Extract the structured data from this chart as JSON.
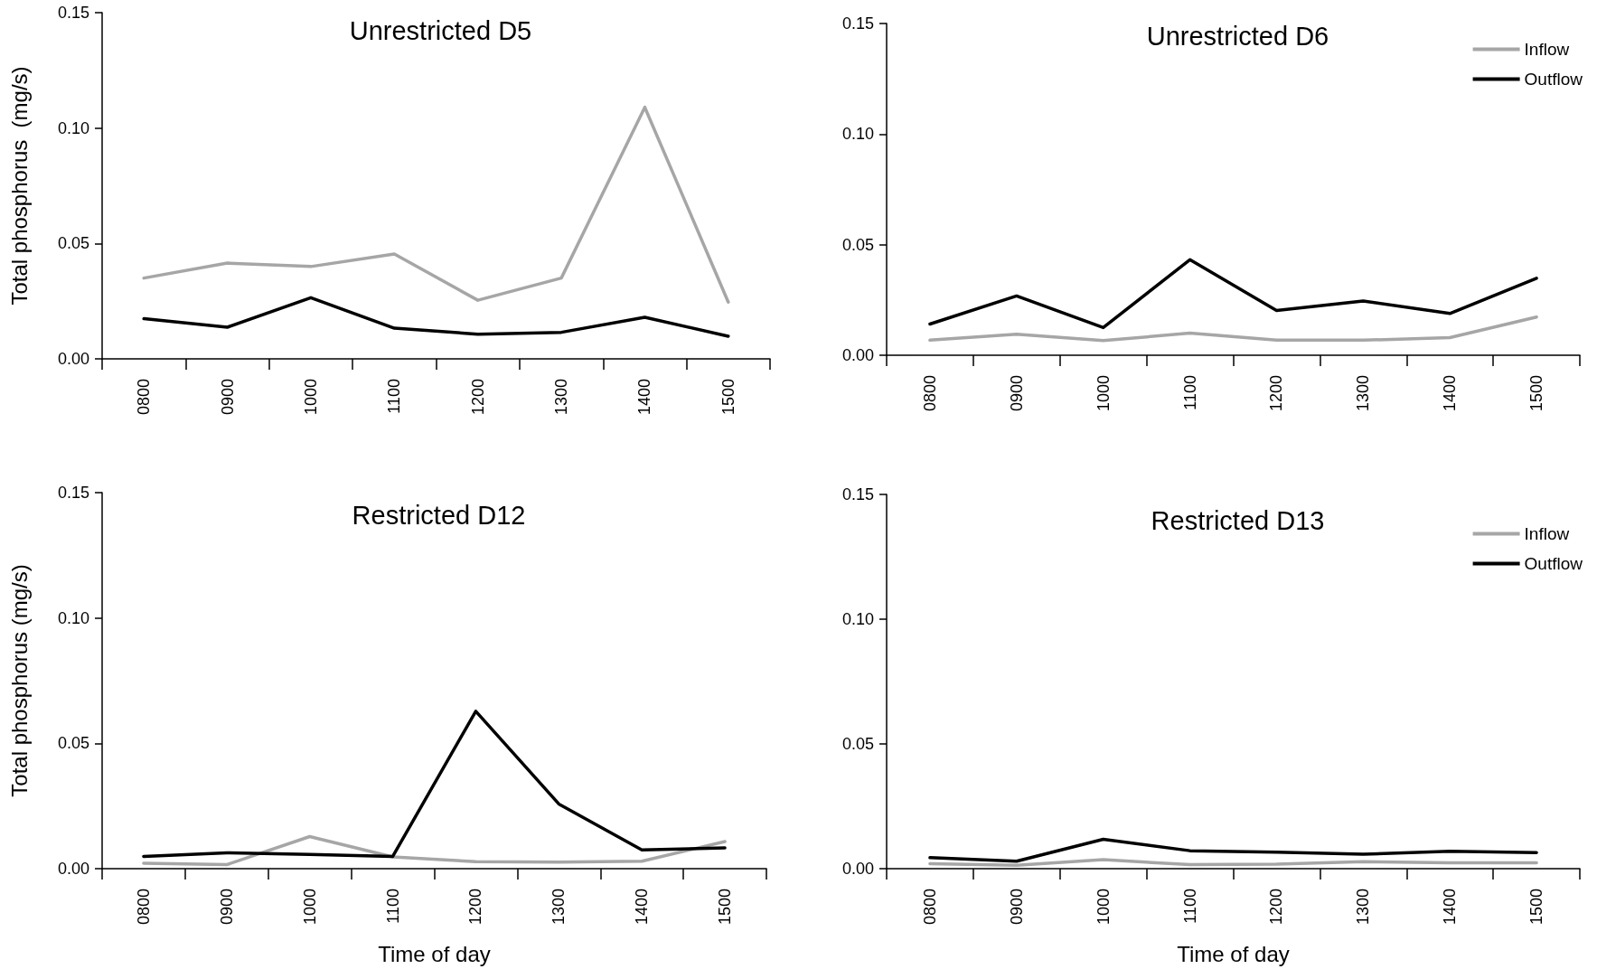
{
  "chart_data": [
    {
      "type": "line",
      "title": "Unrestricted D5",
      "ylabel": "Total phosphorus  (mg/s)",
      "categories": [
        "0800",
        "0900",
        "1000",
        "1100",
        "1200",
        "1300",
        "1400",
        "1500"
      ],
      "ylim": [
        0,
        0.15
      ],
      "yticks": [
        {
          "value": 0,
          "label": "0.00"
        },
        {
          "value": 0.05,
          "label": "0.05"
        },
        {
          "value": 0.1,
          "label": "0.10"
        },
        {
          "value": 0.15,
          "label": "0.15"
        }
      ],
      "grid": false,
      "legend": false,
      "marker": "none",
      "line_style": "solid",
      "series": [
        {
          "color": "#a6a6a6",
          "values": [
            0.035,
            0.0415,
            0.04,
            0.0454,
            0.0254,
            0.035,
            0.109,
            0.0246
          ]
        },
        {
          "color": "#000000",
          "values": [
            0.0174,
            0.0137,
            0.0265,
            0.0133,
            0.0107,
            0.0115,
            0.018,
            0.0098
          ]
        }
      ]
    },
    {
      "type": "line",
      "title": "Unrestricted D6",
      "categories": [
        "0800",
        "0900",
        "1000",
        "1100",
        "1200",
        "1300",
        "1400",
        "1500"
      ],
      "ylim": [
        0,
        0.15
      ],
      "yticks": [
        {
          "value": 0,
          "label": "0.00"
        },
        {
          "value": 0.05,
          "label": "0.05"
        },
        {
          "value": 0.1,
          "label": "0.10"
        },
        {
          "value": 0.15,
          "label": "0.15"
        }
      ],
      "grid": false,
      "legend": "top right",
      "marker": "none",
      "line_style": "solid",
      "series": [
        {
          "name": "Inflow",
          "color": "#a6a6a6",
          "values": [
            0.0068,
            0.0095,
            0.0066,
            0.01,
            0.0068,
            0.0068,
            0.008,
            0.0173
          ]
        },
        {
          "name": "Outflow",
          "color": "#000000",
          "values": [
            0.0141,
            0.0268,
            0.0125,
            0.0432,
            0.0202,
            0.0245,
            0.0189,
            0.0348
          ]
        }
      ]
    },
    {
      "type": "line",
      "title": "Restricted D12",
      "ylabel": "Total phosphorus (mg/s)",
      "xlabel": "Time of day",
      "categories": [
        "0800",
        "0900",
        "1000",
        "1100",
        "1200",
        "1300",
        "1400",
        "1500"
      ],
      "ylim": [
        0,
        0.15
      ],
      "yticks": [
        {
          "value": 0,
          "label": "0.00"
        },
        {
          "value": 0.05,
          "label": "0.05"
        },
        {
          "value": 0.1,
          "label": "0.10"
        },
        {
          "value": 0.15,
          "label": "0.15"
        }
      ],
      "grid": false,
      "legend": false,
      "marker": "none",
      "line_style": "solid",
      "series": [
        {
          "color": "#a6a6a6",
          "values": [
            0.0022,
            0.0016,
            0.0128,
            0.0047,
            0.0028,
            0.0026,
            0.003,
            0.0108
          ]
        },
        {
          "color": "#000000",
          "values": [
            0.0049,
            0.0063,
            0.0057,
            0.0049,
            0.0628,
            0.0258,
            0.0075,
            0.0083
          ]
        }
      ]
    },
    {
      "type": "line",
      "title": "Restricted D13",
      "xlabel": "Time of day",
      "categories": [
        "0800",
        "0900",
        "1000",
        "1100",
        "1200",
        "1300",
        "1400",
        "1500"
      ],
      "ylim": [
        0,
        0.15
      ],
      "yticks": [
        {
          "value": 0,
          "label": "0.00"
        },
        {
          "value": 0.05,
          "label": "0.05"
        },
        {
          "value": 0.1,
          "label": "0.10"
        },
        {
          "value": 0.15,
          "label": "0.15"
        }
      ],
      "grid": false,
      "legend": "top right",
      "marker": "none",
      "line_style": "solid",
      "series": [
        {
          "name": "Inflow",
          "color": "#a6a6a6",
          "values": [
            0.002,
            0.0014,
            0.0036,
            0.0016,
            0.0018,
            0.0028,
            0.0024,
            0.0024
          ]
        },
        {
          "name": "Outflow",
          "color": "#000000",
          "values": [
            0.0044,
            0.003,
            0.0118,
            0.0072,
            0.0066,
            0.0058,
            0.007,
            0.0064
          ]
        }
      ]
    }
  ]
}
